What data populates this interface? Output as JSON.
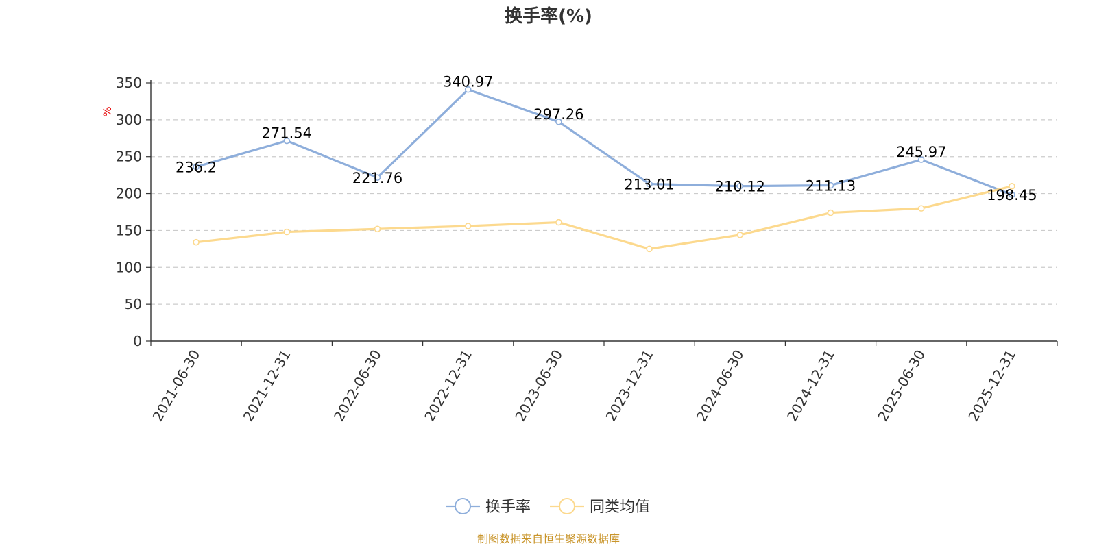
{
  "chart_data": {
    "type": "line",
    "title": "换手率(%)",
    "ylabel": "%",
    "xlabel": "",
    "ylim": [
      0,
      350
    ],
    "yticks": [
      0,
      50,
      100,
      150,
      200,
      250,
      300,
      350
    ],
    "grid": true,
    "legend_position": "bottom-center",
    "categories": [
      "2021-06-30",
      "2021-12-31",
      "2022-06-30",
      "2022-12-31",
      "2023-06-30",
      "2023-12-31",
      "2024-06-30",
      "2024-12-31",
      "2025-06-30",
      "2025-12-31"
    ],
    "series": [
      {
        "name": "换手率",
        "color": "#8eaedb",
        "values": [
          236.2,
          271.54,
          221.76,
          340.97,
          297.26,
          213.01,
          210.12,
          211.13,
          245.97,
          198.45
        ],
        "labels": [
          "236.2",
          "271.54",
          "221.76",
          "340.97",
          "297.26",
          "213.01",
          "210.12",
          "211.13",
          "245.97",
          "198.45"
        ],
        "show_labels": true
      },
      {
        "name": "同类均值",
        "color": "#fcd98e",
        "values": [
          134,
          148,
          152,
          156,
          161,
          125,
          144,
          174,
          180,
          210
        ],
        "show_labels": false
      }
    ]
  },
  "source_text": "制图数据来自恒生聚源数据库"
}
